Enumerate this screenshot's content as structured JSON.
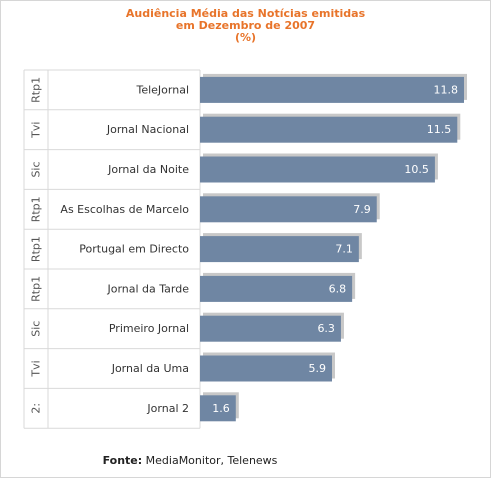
{
  "chart_data": {
    "type": "bar",
    "orientation": "horizontal",
    "title_lines": [
      "Audiência Média das Notícias emitidas",
      "em Dezembro de 2007",
      "(%)"
    ],
    "groups": [
      "Rtp1",
      "Tvi",
      "Sic",
      "Rtp1",
      "Rtp1",
      "Rtp1",
      "Sic",
      "Tvi",
      "2:"
    ],
    "categories": [
      "TeleJornal",
      "Jornal Nacional",
      "Jornal da Noite",
      "As Escolhas de Marcelo",
      "Portugal em Directo",
      "Jornal da Tarde",
      "Primeiro Jornal",
      "Jornal da Uma",
      "Jornal 2"
    ],
    "values": [
      11.8,
      11.5,
      10.5,
      7.9,
      7.1,
      6.8,
      6.3,
      5.9,
      1.6
    ],
    "xlim": [
      0,
      11.8
    ],
    "data_labels": true,
    "grid": false
  },
  "footer": {
    "label": "Fonte:",
    "text": " MediaMonitor, Telenews"
  },
  "colors": {
    "bar": "#6f86a3",
    "bar_shadow": "#c8c8c8",
    "title": "#e8742a",
    "text": "#333333",
    "group_text": "#555555",
    "grid": "#d9d9d9",
    "value_text": "#ffffff"
  }
}
